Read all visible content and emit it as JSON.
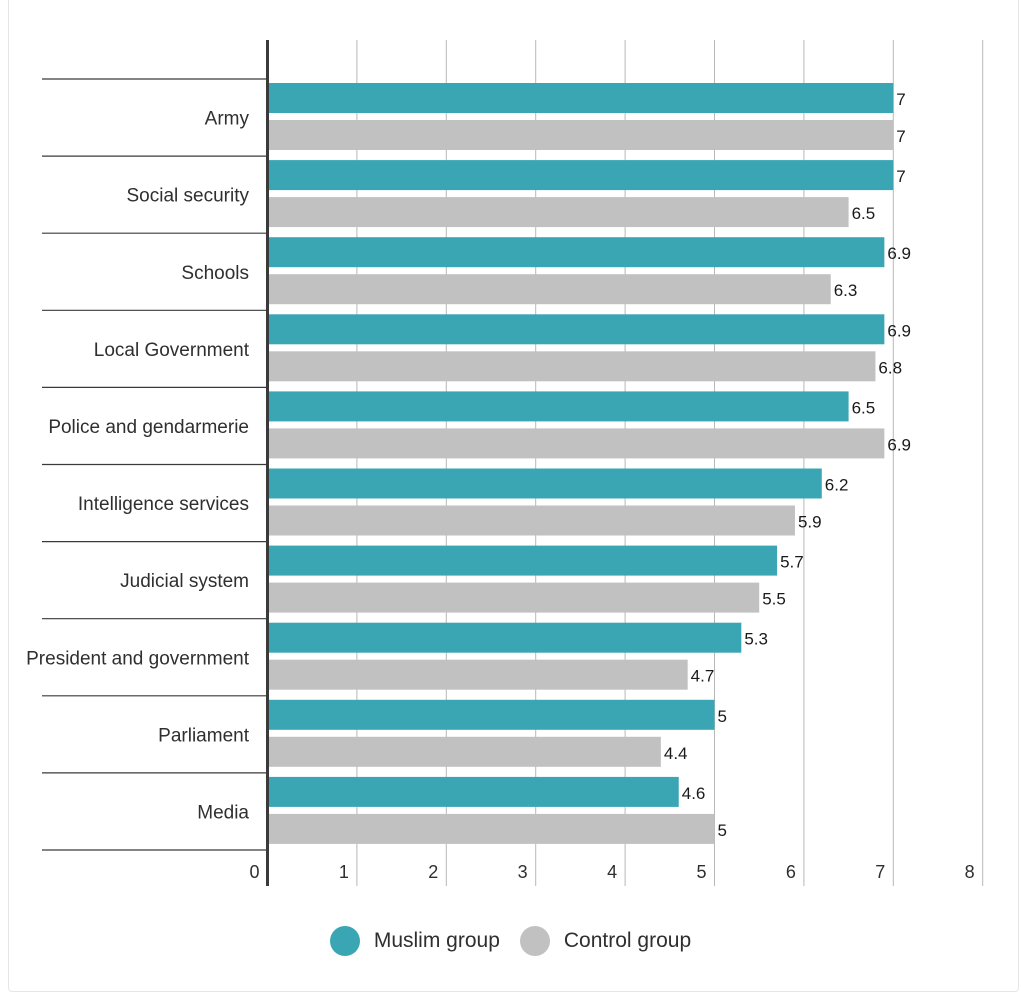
{
  "chart_data": {
    "type": "bar",
    "orientation": "horizontal",
    "categories": [
      "Army",
      "Social security",
      "Schools",
      "Local Government",
      "Police and gendarmerie",
      "Intelligence services",
      "Judicial system",
      "President and government",
      "Parliament",
      "Media"
    ],
    "series": [
      {
        "name": "Muslim group",
        "color": "#3aa6b4",
        "values": [
          7,
          7,
          6.9,
          6.9,
          6.5,
          6.2,
          5.7,
          5.3,
          5,
          4.6
        ]
      },
      {
        "name": "Control group",
        "color": "#c1c1c1",
        "values": [
          7,
          6.5,
          6.3,
          6.8,
          6.9,
          5.9,
          5.5,
          4.7,
          4.4,
          5
        ]
      }
    ],
    "xlim": [
      0,
      8
    ],
    "xticks": [
      "0",
      "1",
      "2",
      "3",
      "4",
      "5",
      "6",
      "7",
      "8"
    ],
    "grid": true,
    "legend_position": "bottom-center"
  }
}
